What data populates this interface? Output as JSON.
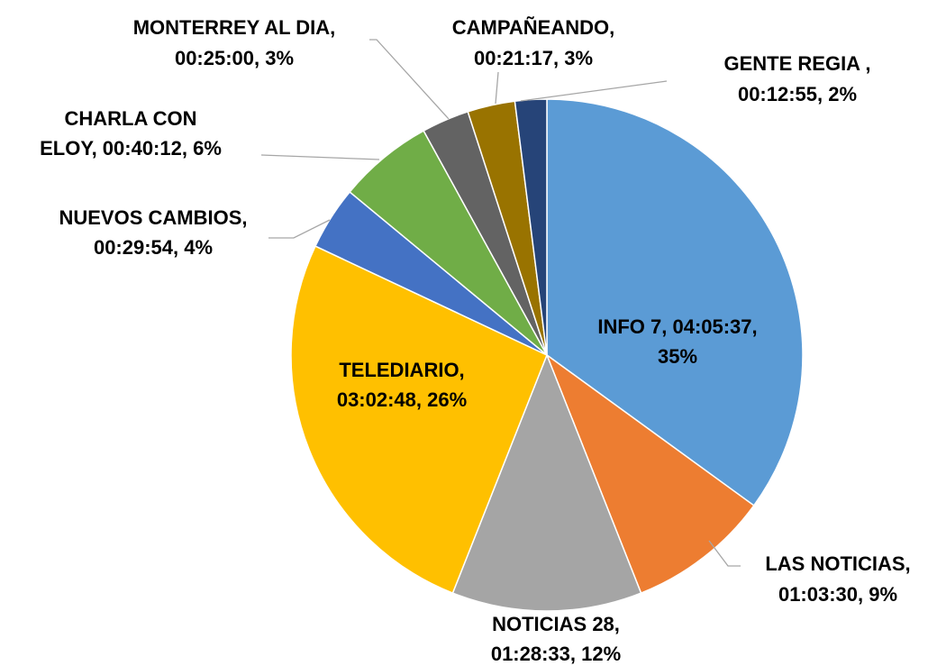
{
  "chart_data": {
    "type": "pie",
    "values": [
      35,
      9,
      12,
      26,
      4,
      6,
      3,
      3,
      2
    ],
    "value_labels": [
      [
        "INFO 7, 04:05:37,",
        "35%"
      ],
      [
        "LAS NOTICIAS,",
        "01:03:30, 9%"
      ],
      [
        "NOTICIAS 28,",
        "01:28:33, 12%"
      ],
      [
        "TELEDIARIO,",
        "03:02:48, 26%"
      ],
      [
        "NUEVOS CAMBIOS,",
        "00:29:54, 4%"
      ],
      [
        "CHARLA CON",
        "ELOY, 00:40:12, 6%"
      ],
      [
        "MONTERREY AL DIA,",
        "00:25:00, 3%"
      ],
      [
        "CAMPAÑEANDO,",
        "00:21:17, 3%"
      ],
      [
        "GENTE REGIA ,",
        "00:12:55, 2%"
      ]
    ],
    "colors": [
      "#5b9bd5",
      "#ed7d31",
      "#a5a5a5",
      "#ffc000",
      "#4472c4",
      "#70ad47",
      "#636363",
      "#997300",
      "#264478"
    ]
  }
}
